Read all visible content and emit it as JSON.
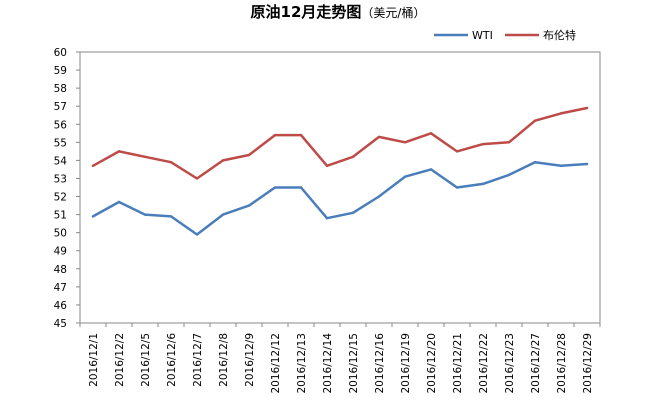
{
  "chart_data": {
    "type": "line",
    "title": "原油12月走势图",
    "title_unit": "（美元/桶）",
    "categories": [
      "2016/12/1",
      "2016/12/2",
      "2016/12/5",
      "2016/12/6",
      "2016/12/7",
      "2016/12/8",
      "2016/12/9",
      "2016/12/12",
      "2016/12/13",
      "2016/12/14",
      "2016/12/15",
      "2016/12/16",
      "2016/12/19",
      "2016/12/20",
      "2016/12/21",
      "2016/12/22",
      "2016/12/23",
      "2016/12/27",
      "2016/12/28",
      "2016/12/29"
    ],
    "series": [
      {
        "name": "WTI",
        "color": "#4a7ebb",
        "values": [
          50.9,
          51.7,
          51.0,
          50.9,
          49.9,
          51.0,
          51.5,
          52.5,
          52.5,
          50.8,
          51.1,
          52.0,
          53.1,
          53.5,
          52.5,
          52.7,
          53.2,
          53.9,
          53.7,
          53.8
        ]
      },
      {
        "name": "布伦特",
        "color": "#be4b48",
        "values": [
          53.7,
          54.5,
          54.2,
          53.9,
          53.0,
          54.0,
          54.3,
          55.4,
          55.4,
          53.7,
          54.2,
          55.3,
          55.0,
          55.5,
          54.5,
          54.9,
          55.0,
          56.2,
          56.6,
          56.9
        ]
      }
    ],
    "ylim": [
      45,
      60
    ],
    "y_ticks": [
      45,
      46,
      47,
      48,
      49,
      50,
      51,
      52,
      53,
      54,
      55,
      56,
      57,
      58,
      59,
      60
    ],
    "grid": false,
    "legend_position": "top-right",
    "xlabel": "",
    "ylabel": ""
  }
}
